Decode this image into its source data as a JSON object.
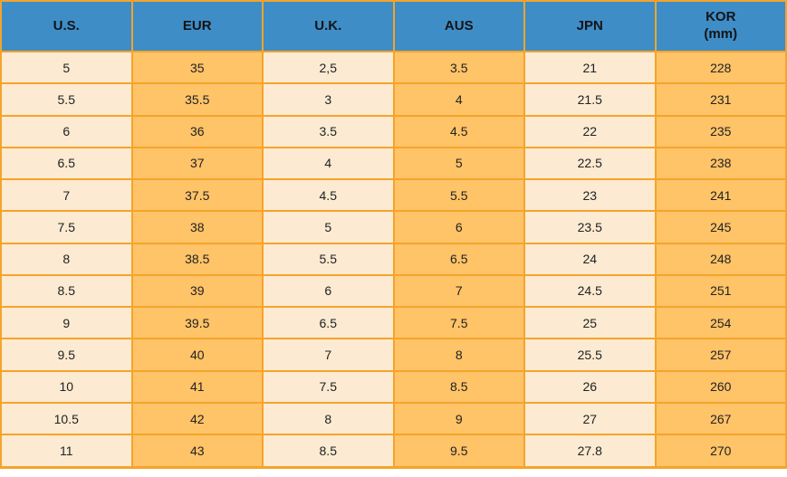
{
  "table": {
    "title_semantic": "shoe-size-conversion-table",
    "columns": [
      {
        "label": "U.S.",
        "sub": ""
      },
      {
        "label": "EUR",
        "sub": ""
      },
      {
        "label": "U.K.",
        "sub": ""
      },
      {
        "label": "AUS",
        "sub": ""
      },
      {
        "label": "JPN",
        "sub": ""
      },
      {
        "label": "KOR",
        "sub": "(mm)"
      }
    ],
    "rows": [
      [
        "5",
        "35",
        "2,5",
        "3.5",
        "21",
        "228"
      ],
      [
        "5.5",
        "35.5",
        "3",
        "4",
        "21.5",
        "231"
      ],
      [
        "6",
        "36",
        "3.5",
        "4.5",
        "22",
        "235"
      ],
      [
        "6.5",
        "37",
        "4",
        "5",
        "22.5",
        "238"
      ],
      [
        "7",
        "37.5",
        "4.5",
        "5.5",
        "23",
        "241"
      ],
      [
        "7.5",
        "38",
        "5",
        "6",
        "23.5",
        "245"
      ],
      [
        "8",
        "38.5",
        "5.5",
        "6.5",
        "24",
        "248"
      ],
      [
        "8.5",
        "39",
        "6",
        "7",
        "24.5",
        "251"
      ],
      [
        "9",
        "39.5",
        "6.5",
        "7.5",
        "25",
        "254"
      ],
      [
        "9.5",
        "40",
        "7",
        "8",
        "25.5",
        "257"
      ],
      [
        "10",
        "41",
        "7.5",
        "8.5",
        "26",
        "260"
      ],
      [
        "10.5",
        "42",
        "8",
        "9",
        "27",
        "267"
      ],
      [
        "11",
        "43",
        "8.5",
        "9.5",
        "27.8",
        "270"
      ]
    ],
    "colors": {
      "header_bg": "#3E8DC7",
      "header_text": "#141414",
      "cell_light": "#FCEAD2",
      "cell_orange": "#FFC368",
      "border": "#F5A42A",
      "body_text": "#222222"
    }
  },
  "chart_data": {
    "type": "table",
    "title": "Shoe size conversion chart",
    "categories": [
      "U.S.",
      "EUR",
      "U.K.",
      "AUS",
      "JPN",
      "KOR (mm)"
    ],
    "series": [
      {
        "name": "U.S.",
        "values": [
          "5",
          "5.5",
          "6",
          "6.5",
          "7",
          "7.5",
          "8",
          "8.5",
          "9",
          "9.5",
          "10",
          "10.5",
          "11"
        ]
      },
      {
        "name": "EUR",
        "values": [
          "35",
          "35.5",
          "36",
          "37",
          "37.5",
          "38",
          "38.5",
          "39",
          "39.5",
          "40",
          "41",
          "42",
          "43"
        ]
      },
      {
        "name": "U.K.",
        "values": [
          "2,5",
          "3",
          "3.5",
          "4",
          "4.5",
          "5",
          "5.5",
          "6",
          "6.5",
          "7",
          "7.5",
          "8",
          "8.5"
        ]
      },
      {
        "name": "AUS",
        "values": [
          "3.5",
          "4",
          "4.5",
          "5",
          "5.5",
          "6",
          "6.5",
          "7",
          "7.5",
          "8",
          "8.5",
          "9",
          "9.5"
        ]
      },
      {
        "name": "JPN",
        "values": [
          "21",
          "21.5",
          "22",
          "22.5",
          "23",
          "23.5",
          "24",
          "24.5",
          "25",
          "25.5",
          "26",
          "27",
          "27.8"
        ]
      },
      {
        "name": "KOR (mm)",
        "values": [
          "228",
          "231",
          "235",
          "238",
          "241",
          "245",
          "248",
          "251",
          "254",
          "257",
          "260",
          "267",
          "270"
        ]
      }
    ]
  }
}
